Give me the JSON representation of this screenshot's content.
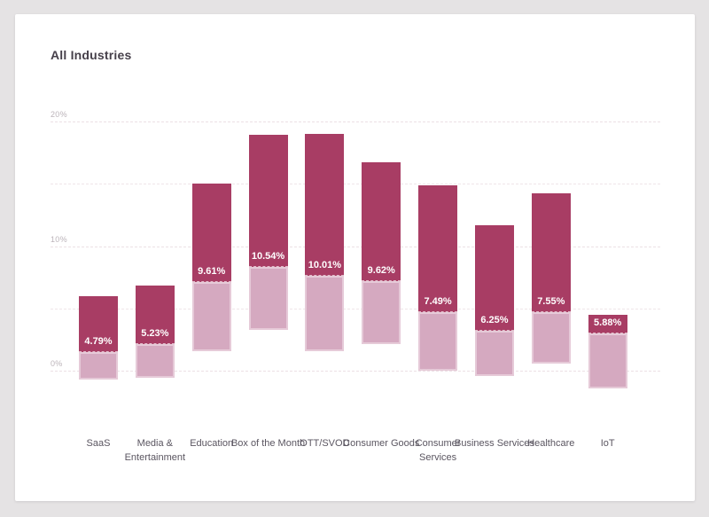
{
  "chart_data": {
    "type": "bar",
    "variant": "floating-range-bars",
    "title": "All Industries",
    "categories": [
      "SaaS",
      "Media & Entertainment",
      "Education",
      "Box of the Month",
      "OTT/SVOD",
      "Consumer Goods",
      "Consumer Services",
      "Business Services",
      "Healthcare",
      "IoT"
    ],
    "value_labels": [
      "4.79%",
      "5.23%",
      "9.61%",
      "10.54%",
      "10.01%",
      "9.62%",
      "7.49%",
      "6.25%",
      "7.55%",
      "5.88%"
    ],
    "average_values": [
      4.79,
      5.23,
      9.61,
      10.54,
      10.01,
      9.62,
      7.49,
      6.25,
      7.55,
      5.88
    ],
    "series": [
      {
        "name": "range-high",
        "values": [
          6.0,
          6.8,
          15.0,
          18.9,
          19.0,
          16.7,
          14.9,
          11.7,
          14.2,
          4.5
        ]
      },
      {
        "name": "range-mid",
        "values": [
          1.5,
          2.1,
          7.1,
          8.3,
          7.6,
          7.2,
          4.7,
          3.2,
          4.7,
          3.0
        ]
      },
      {
        "name": "range-low",
        "values": [
          -0.7,
          -0.6,
          1.6,
          3.3,
          1.6,
          2.1,
          0.0,
          -0.4,
          0.6,
          -1.4
        ]
      }
    ],
    "ylabel": "",
    "xlabel": "",
    "ylim": [
      -2,
      21
    ],
    "yticks": [
      {
        "value": 0,
        "label": "0%"
      },
      {
        "value": 5,
        "label": ""
      },
      {
        "value": 10,
        "label": "10%"
      },
      {
        "value": 15,
        "label": ""
      },
      {
        "value": 20,
        "label": "20%"
      }
    ],
    "grid": true,
    "legend": false,
    "colors": {
      "segment_dark": "#a83d64",
      "segment_light": "#d5a9c0",
      "segment_light_border": "#e6cad8",
      "label_text": "#ffffff",
      "axis_text": "#bcb4ba",
      "category_text": "#5a5560",
      "gridline": "#efe5e9",
      "card_background": "#ffffff",
      "page_background": "#e5e3e4",
      "title_text": "#46404a"
    }
  }
}
